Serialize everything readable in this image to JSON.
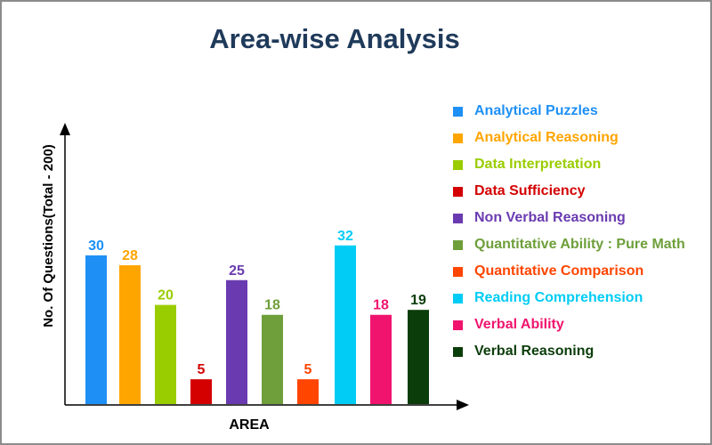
{
  "chart_data": {
    "type": "bar",
    "title": "Area-wise Analysis",
    "xlabel": "AREA",
    "ylabel": "No. Of Questions(Total - 200)",
    "ylim": [
      0,
      36
    ],
    "grid": false,
    "legend_position": "right",
    "categories": [
      "Analytical Puzzles",
      "Analytical Reasoning",
      "Data Interpretation",
      "Data Sufficiency",
      "Non Verbal Reasoning",
      "Quantitative Ability : Pure Math",
      "Quantitative Comparison",
      "Reading Comprehension",
      "Verbal Ability",
      "Verbal Reasoning"
    ],
    "values": [
      30,
      28,
      20,
      5,
      25,
      18,
      5,
      32,
      18,
      19
    ],
    "colors": [
      "#1e90f5",
      "#ffa500",
      "#9acd00",
      "#d40000",
      "#6a3bb0",
      "#6e9f3a",
      "#ff4500",
      "#00ccf5",
      "#f0146e",
      "#0b3d0b"
    ]
  }
}
